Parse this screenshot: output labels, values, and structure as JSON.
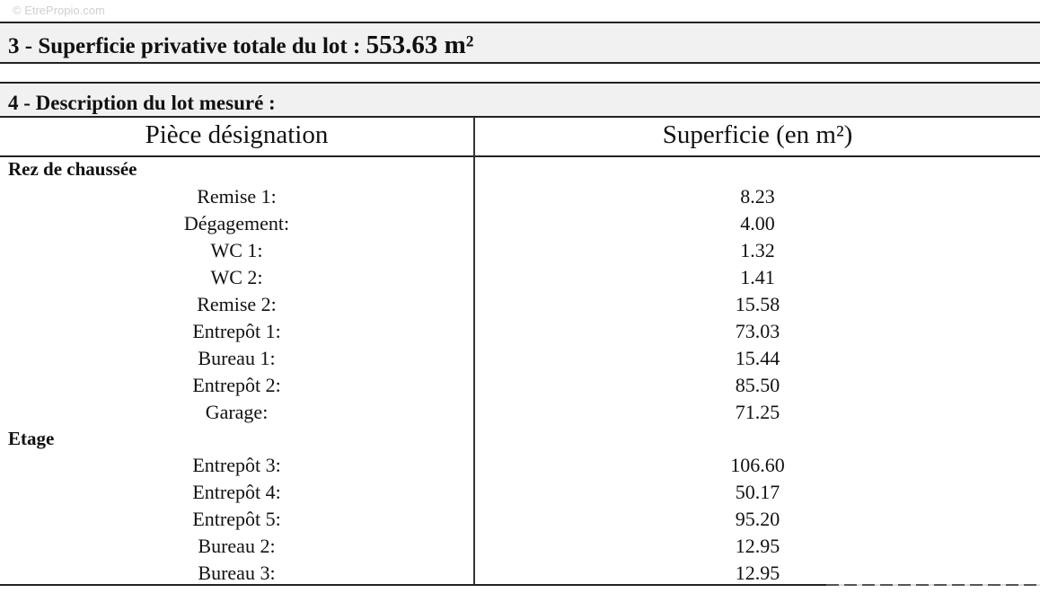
{
  "watermark": "© EtrePropio.com",
  "section3": {
    "label": "3 - Superficie privative totale du lot :",
    "value": "553.63 m²"
  },
  "section4": {
    "label": "4 - Description du lot mesuré :"
  },
  "table": {
    "headers": [
      "Pièce désignation",
      "Superficie (en m²)"
    ],
    "rows": [
      {
        "group": "Rez de chaussée"
      },
      {
        "name": "Remise 1:",
        "area": "8.23"
      },
      {
        "name": "Dégagement:",
        "area": "4.00"
      },
      {
        "name": "WC 1:",
        "area": "1.32"
      },
      {
        "name": "WC 2:",
        "area": "1.41"
      },
      {
        "name": "Remise 2:",
        "area": "15.58"
      },
      {
        "name": "Entrepôt 1:",
        "area": "73.03"
      },
      {
        "name": "Bureau 1:",
        "area": "15.44"
      },
      {
        "name": "Entrepôt 2:",
        "area": "85.50"
      },
      {
        "name": "Garage:",
        "area": "71.25"
      },
      {
        "group": "Etage"
      },
      {
        "name": "Entrepôt 3:",
        "area": "106.60"
      },
      {
        "name": "Entrepôt 4:",
        "area": "50.17"
      },
      {
        "name": "Entrepôt 5:",
        "area": "95.20"
      },
      {
        "name": "Bureau 2:",
        "area": "12.95"
      },
      {
        "name": "Bureau 3:",
        "area": "12.95"
      }
    ]
  }
}
